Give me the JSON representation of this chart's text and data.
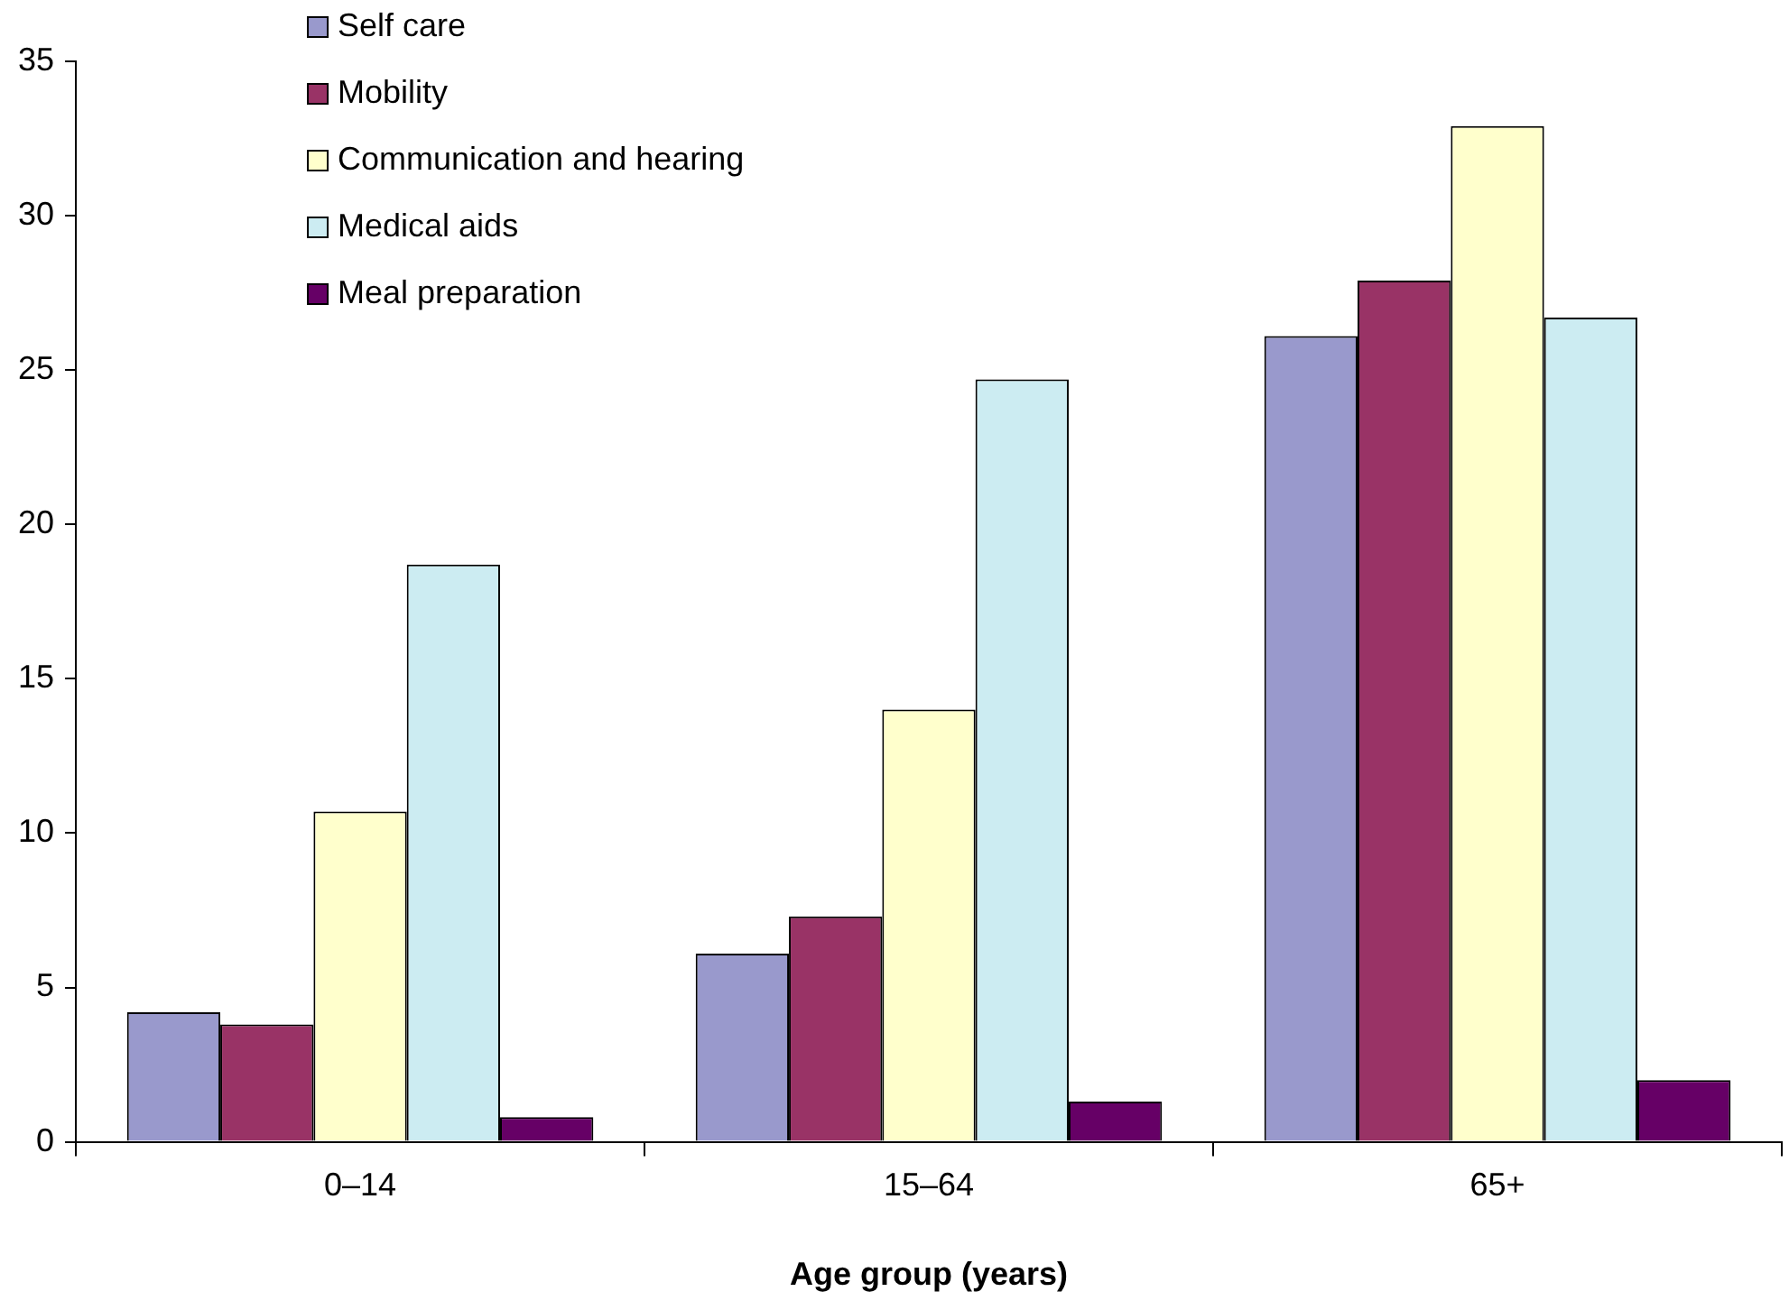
{
  "chart_data": {
    "type": "bar",
    "xlabel": "Age group (years)",
    "categories": [
      "0–14",
      "15–64",
      "65+"
    ],
    "series": [
      {
        "name": "Self care",
        "color": "#9999cc",
        "values": [
          4.2,
          6.1,
          26.1
        ]
      },
      {
        "name": "Mobility",
        "color": "#993366",
        "values": [
          3.8,
          7.3,
          27.9
        ]
      },
      {
        "name": "Communication and hearing",
        "color": "#ffffcc",
        "values": [
          10.7,
          14.0,
          32.9
        ]
      },
      {
        "name": "Medical aids",
        "color": "#ccecf2",
        "values": [
          18.7,
          24.7,
          26.7
        ]
      },
      {
        "name": "Meal preparation",
        "color": "#660066",
        "values": [
          0.8,
          1.3,
          2.0
        ]
      }
    ],
    "ylim": [
      0,
      35
    ],
    "yticks": [
      0,
      5,
      10,
      15,
      20,
      25,
      30,
      35
    ],
    "grid": false,
    "legend": "top left"
  }
}
